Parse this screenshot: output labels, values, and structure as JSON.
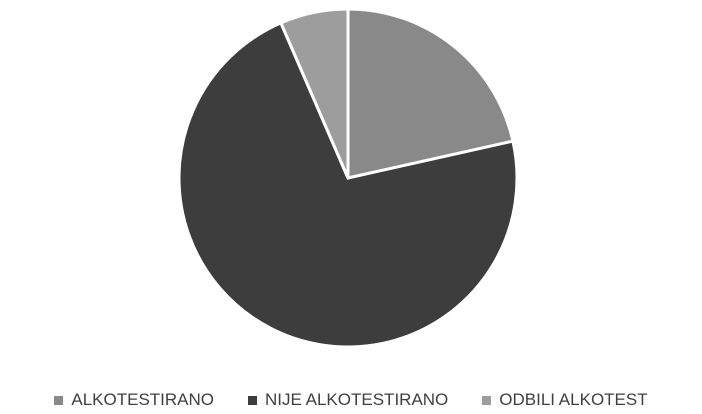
{
  "chart_data": {
    "type": "pie",
    "categories": [
      "ALKOTESTIRANO",
      "NIJE ALKOTESTIRANO",
      "ODBILI ALKOTEST"
    ],
    "values": [
      21.5,
      72,
      6.5
    ],
    "colors": [
      "#898989",
      "#3d3d3d",
      "#9d9d9d"
    ],
    "start_angle_degrees": 0,
    "direction": "clockwise",
    "legend_position": "bottom"
  },
  "legend": {
    "items": [
      {
        "label": "ALKOTESTIRANO",
        "color": "#898989"
      },
      {
        "label": "NIJE ALKOTESTIRANO",
        "color": "#3d3d3d"
      },
      {
        "label": "ODBILI ALKOTEST",
        "color": "#9d9d9d"
      }
    ]
  }
}
